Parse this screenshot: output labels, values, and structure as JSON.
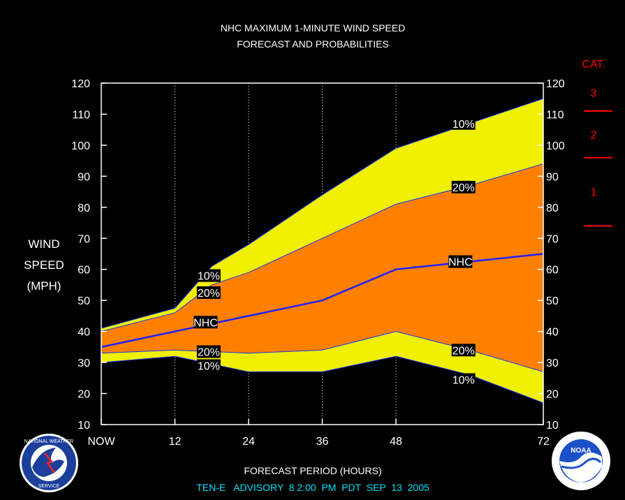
{
  "chart_data": {
    "type": "area",
    "title_lines": [
      "NHC MAXIMUM 1-MINUTE WIND SPEED",
      "FORECAST AND PROBABILITIES"
    ],
    "ylabel_lines": [
      "WIND",
      "SPEED",
      "(MPH)"
    ],
    "xlabel": "FORECAST PERIOD (HOURS)",
    "footer": "TEN-E   ADVISORY  8 2:00  PM  PDT  SEP  13  2005",
    "xlim": [
      0,
      72
    ],
    "ylim": [
      10,
      120
    ],
    "yticks": [
      10,
      20,
      30,
      40,
      50,
      60,
      70,
      80,
      90,
      100,
      110,
      120
    ],
    "xticks": [
      {
        "value": 0,
        "label": "NOW"
      },
      {
        "value": 12,
        "label": "12"
      },
      {
        "value": 24,
        "label": "24"
      },
      {
        "value": 36,
        "label": "36"
      },
      {
        "value": 48,
        "label": "48"
      },
      {
        "value": 72,
        "label": "72"
      }
    ],
    "colors": {
      "outer_band": "#f0f000",
      "inner_band": "#ff8000",
      "nhc_line": "#2020ff",
      "category": "#ff0000"
    },
    "series": [
      {
        "key": "upper10",
        "x": [
          0,
          12,
          18,
          24,
          36,
          48,
          60,
          72
        ],
        "values": [
          41,
          47.5,
          61,
          68,
          84,
          99,
          107,
          115
        ]
      },
      {
        "key": "upper20",
        "x": [
          0,
          12,
          18,
          24,
          36,
          48,
          60,
          72
        ],
        "values": [
          40,
          46,
          55,
          59,
          70,
          81,
          87,
          94
        ]
      },
      {
        "key": "nhc",
        "x": [
          0,
          12,
          24,
          36,
          48,
          60,
          72
        ],
        "values": [
          35,
          40,
          45,
          50,
          60,
          62.5,
          65
        ]
      },
      {
        "key": "lower20",
        "x": [
          0,
          12,
          18,
          24,
          36,
          48,
          60,
          72
        ],
        "values": [
          33,
          34,
          33.5,
          33,
          34,
          40,
          34,
          27
        ]
      },
      {
        "key": "lower10",
        "x": [
          0,
          12,
          18,
          24,
          36,
          48,
          60,
          72
        ],
        "values": [
          30,
          32,
          29.5,
          27,
          27,
          32,
          26,
          17
        ]
      }
    ],
    "annotations": [
      {
        "text": "10%",
        "x": 17.5,
        "y": 58
      },
      {
        "text": "20%",
        "x": 17.5,
        "y": 52.5
      },
      {
        "text": "NHC",
        "x": 17,
        "y": 43
      },
      {
        "text": "20%",
        "x": 17.5,
        "y": 33.5
      },
      {
        "text": "10%",
        "x": 17.5,
        "y": 29
      },
      {
        "text": "10%",
        "x": 59,
        "y": 107
      },
      {
        "text": "20%",
        "x": 59,
        "y": 86.5
      },
      {
        "text": "NHC",
        "x": 58.5,
        "y": 62.5
      },
      {
        "text": "20%",
        "x": 59,
        "y": 34
      },
      {
        "text": "10%",
        "x": 59,
        "y": 24.5
      }
    ],
    "category_scale": {
      "heading": "CAT.",
      "boundaries": [
        74,
        96,
        111
      ],
      "labels": [
        {
          "text": "1",
          "y": 85
        },
        {
          "text": "2",
          "y": 103.5
        },
        {
          "text": "3",
          "y": 117
        }
      ]
    }
  }
}
